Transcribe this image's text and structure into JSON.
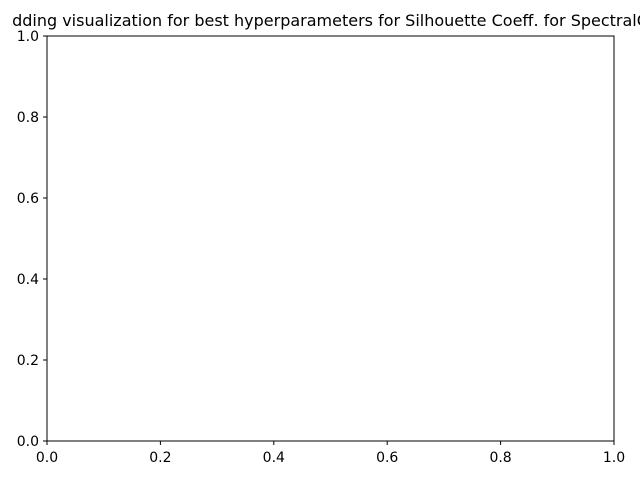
{
  "chart_data": {
    "type": "scatter",
    "title": "dding visualization for best hyperparameters for Silhouette Coeff. for SpectralC",
    "xlabel": "",
    "ylabel": "",
    "xlim": [
      0.0,
      1.0
    ],
    "ylim": [
      0.0,
      1.0
    ],
    "x_ticks": [
      "0.0",
      "0.2",
      "0.4",
      "0.6",
      "0.8",
      "1.0"
    ],
    "y_ticks": [
      "0.0",
      "0.2",
      "0.4",
      "0.6",
      "0.8",
      "1.0"
    ],
    "grid": false,
    "series": []
  }
}
